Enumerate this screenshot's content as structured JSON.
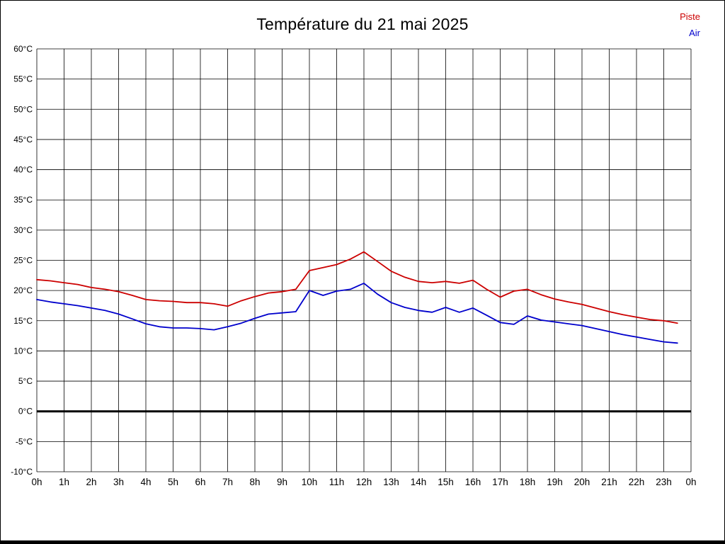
{
  "page": {
    "title": "Température du 21 mai 2025"
  },
  "legend": [
    {
      "label": "Piste",
      "color": "#cc0000"
    },
    {
      "label": "Air",
      "color": "#0000cc"
    }
  ],
  "chart_data": {
    "type": "line",
    "title": "Température du 21 mai 2025",
    "xlabel": "",
    "ylabel": "",
    "grid": true,
    "legend_position": "top-right",
    "xlim": [
      0,
      24
    ],
    "ylim": [
      -10,
      60
    ],
    "y_ticks": [
      60,
      55,
      50,
      45,
      40,
      35,
      30,
      25,
      20,
      15,
      10,
      5,
      0,
      -5,
      -10
    ],
    "y_tick_labels": [
      "60°C",
      "55°C",
      "50°C",
      "45°C",
      "40°C",
      "35°C",
      "30°C",
      "25°C",
      "20°C",
      "15°C",
      "10°C",
      "5°C",
      "0°C",
      "-5°C",
      "-10°C"
    ],
    "x_ticks": [
      0,
      1,
      2,
      3,
      4,
      5,
      6,
      7,
      8,
      9,
      10,
      11,
      12,
      13,
      14,
      15,
      16,
      17,
      18,
      19,
      20,
      21,
      22,
      23,
      24
    ],
    "x_tick_labels": [
      "0h",
      "1h",
      "2h",
      "3h",
      "4h",
      "5h",
      "6h",
      "7h",
      "8h",
      "9h",
      "10h",
      "11h",
      "12h",
      "13h",
      "14h",
      "15h",
      "16h",
      "17h",
      "18h",
      "19h",
      "20h",
      "21h",
      "22h",
      "23h",
      "0h"
    ],
    "zero_line": {
      "value": 0,
      "color": "#000000",
      "width": 3
    },
    "x": [
      0,
      0.5,
      1,
      1.5,
      2,
      2.5,
      3,
      3.5,
      4,
      4.5,
      5,
      5.5,
      6,
      6.5,
      7,
      7.5,
      8,
      8.5,
      9,
      9.5,
      10,
      10.5,
      11,
      11.5,
      12,
      12.5,
      13,
      13.5,
      14,
      14.5,
      15,
      15.5,
      16,
      16.5,
      17,
      17.5,
      18,
      18.5,
      19,
      19.5,
      20,
      20.5,
      21,
      21.5,
      22,
      22.5,
      23,
      23.5
    ],
    "series": [
      {
        "name": "Piste",
        "color": "#cc0000",
        "values": [
          21.8,
          21.6,
          21.3,
          21.0,
          20.5,
          20.2,
          19.8,
          19.2,
          18.5,
          18.3,
          18.2,
          18.0,
          18.0,
          17.8,
          17.4,
          18.3,
          19.0,
          19.6,
          19.8,
          20.2,
          23.3,
          23.8,
          24.3,
          25.2,
          26.4,
          24.8,
          23.2,
          22.2,
          21.5,
          21.3,
          21.5,
          21.2,
          21.7,
          20.2,
          18.9,
          19.9,
          20.2,
          19.3,
          18.6,
          18.1,
          17.7,
          17.1,
          16.5,
          16.0,
          15.6,
          15.2,
          15.0,
          14.6
        ]
      },
      {
        "name": "Air",
        "color": "#0000cc",
        "values": [
          18.5,
          18.1,
          17.8,
          17.5,
          17.1,
          16.7,
          16.1,
          15.3,
          14.5,
          14.0,
          13.8,
          13.8,
          13.7,
          13.5,
          14.0,
          14.6,
          15.4,
          16.1,
          16.3,
          16.5,
          20.0,
          19.2,
          19.9,
          20.2,
          21.2,
          19.4,
          18.0,
          17.2,
          16.7,
          16.4,
          17.2,
          16.4,
          17.1,
          15.9,
          14.7,
          14.4,
          15.8,
          15.1,
          14.8,
          14.5,
          14.2,
          13.7,
          13.2,
          12.7,
          12.3,
          11.9,
          11.5,
          11.3
        ]
      }
    ]
  }
}
